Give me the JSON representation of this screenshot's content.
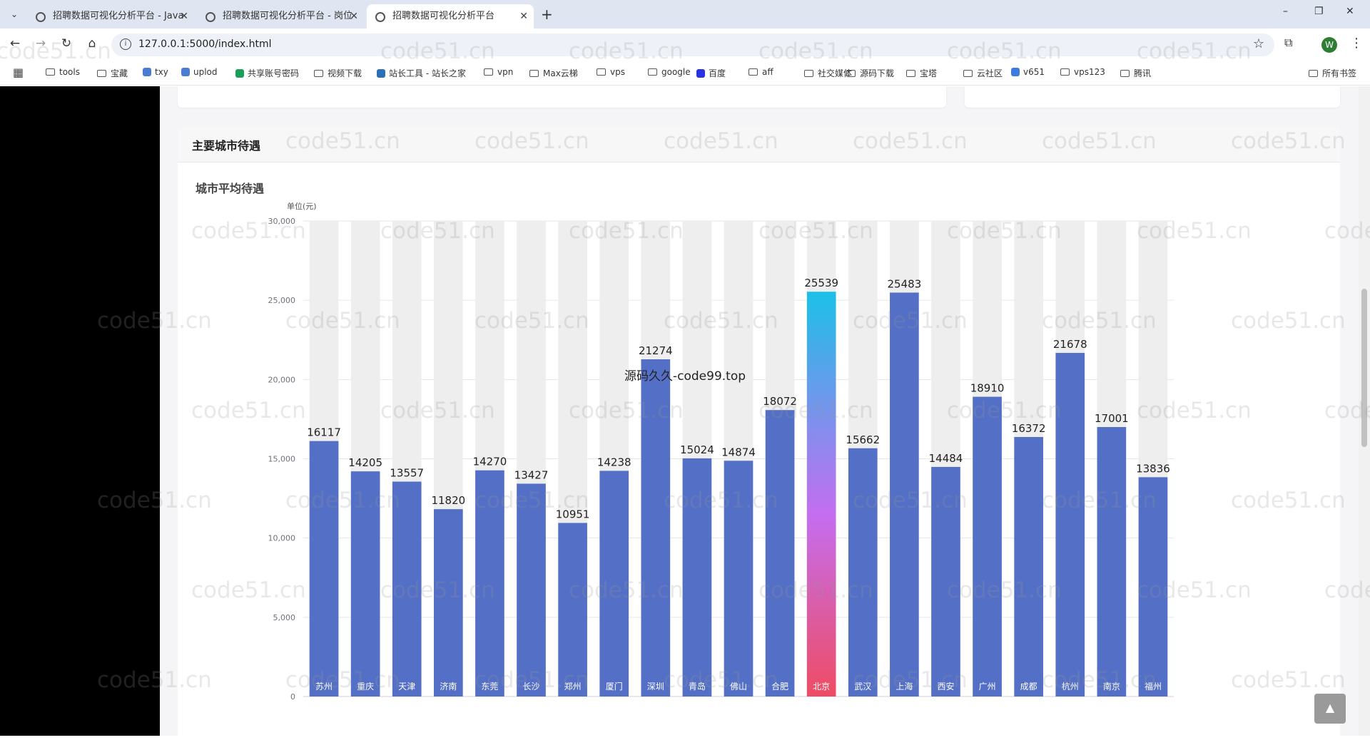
{
  "browser": {
    "tabs": [
      {
        "title": "招聘数据可视化分析平台 - Java",
        "active": false
      },
      {
        "title": "招聘数据可视化分析平台 - 岗位",
        "active": false
      },
      {
        "title": "招聘数据可视化分析平台",
        "active": true
      }
    ],
    "new_tab_label": "+",
    "window_controls": [
      "–",
      "❐",
      "✕"
    ],
    "url": "127.0.0.1:5000/index.html",
    "profile_initial": "W",
    "bookmarks": [
      {
        "label": "tools",
        "icon": "folder-icon"
      },
      {
        "label": "宝藏",
        "icon": "folder-icon"
      },
      {
        "label": "txy",
        "icon": "cloud-icon"
      },
      {
        "label": "uplod",
        "icon": "upload-icon"
      },
      {
        "label": "共享账号密码",
        "icon": "sheet-icon"
      },
      {
        "label": "视频下载",
        "icon": "folder-icon"
      },
      {
        "label": "站长工具 - 站长之家",
        "icon": "site-icon"
      },
      {
        "label": "vpn",
        "icon": "folder-icon"
      },
      {
        "label": "Max云梯",
        "icon": "folder-icon"
      },
      {
        "label": "vps",
        "icon": "folder-icon"
      },
      {
        "label": "google",
        "icon": "folder-icon"
      },
      {
        "label": "百度",
        "icon": "baidu-icon"
      },
      {
        "label": "aff",
        "icon": "folder-icon"
      },
      {
        "label": "社交媒体",
        "icon": "folder-icon"
      },
      {
        "label": "源码下载",
        "icon": "folder-icon"
      },
      {
        "label": "宝塔",
        "icon": "folder-icon"
      },
      {
        "label": "云社区",
        "icon": "folder-icon"
      },
      {
        "label": "v651",
        "icon": "v-icon"
      },
      {
        "label": "vps123",
        "icon": "folder-icon"
      },
      {
        "label": "腾讯",
        "icon": "folder-icon"
      }
    ],
    "all_bookmarks_label": "所有书签"
  },
  "page": {
    "section_title": "主要城市待遇",
    "watermark_text": "code51.cn",
    "overlay_text": "源码久久-code99.top",
    "back_to_top_icon": "arrow-up-icon"
  },
  "colors": {
    "bar": "#5470c6",
    "bar_bg": "#eeeeee",
    "highlight_top": "#1cc0e8",
    "highlight_mid": "#c46ef0",
    "highlight_bottom": "#ef4c63"
  },
  "chart_data": {
    "type": "bar",
    "title": "城市平均待遇",
    "unit_label": "单位(元)",
    "categories": [
      "苏州",
      "重庆",
      "天津",
      "济南",
      "东莞",
      "长沙",
      "郑州",
      "厦门",
      "深圳",
      "青岛",
      "佛山",
      "合肥",
      "北京",
      "武汉",
      "上海",
      "西安",
      "广州",
      "成都",
      "杭州",
      "南京",
      "福州"
    ],
    "values": [
      16117,
      14205,
      13557,
      11820,
      14270,
      13427,
      10951,
      14238,
      21274,
      15024,
      14874,
      18072,
      25539,
      15662,
      25483,
      14484,
      18910,
      16372,
      21678,
      17001,
      13836
    ],
    "highlighted_category": "北京",
    "ylim": [
      0,
      30000
    ],
    "yticks": [
      "0",
      "5,000",
      "10,000",
      "15,000",
      "20,000",
      "25,000",
      "30,000"
    ],
    "ytick_values": [
      0,
      5000,
      10000,
      15000,
      20000,
      25000,
      30000
    ],
    "grid": true,
    "background_bars": true
  }
}
